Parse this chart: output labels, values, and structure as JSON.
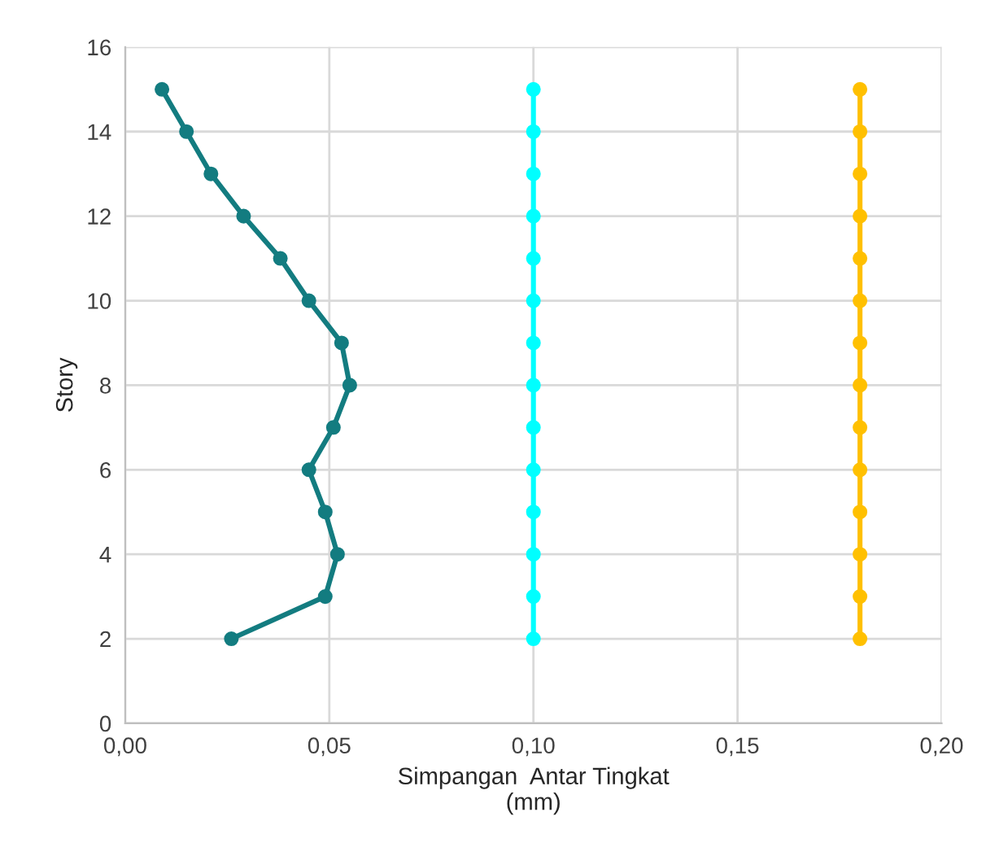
{
  "chart_data": {
    "type": "line",
    "xlabel": "Simpangan  Antar Tingkat\n(mm)",
    "ylabel": "Story",
    "series": [
      {
        "color": "#137c80",
        "x": [
          0.009,
          0.015,
          0.021,
          0.029,
          0.038,
          0.045,
          0.053,
          0.055,
          0.051,
          0.045,
          0.049,
          0.052,
          0.049,
          0.026
        ],
        "values": [
          15,
          14,
          13,
          12,
          11,
          10,
          9,
          8,
          7,
          6,
          5,
          4,
          3,
          2
        ]
      },
      {
        "color": "#00ffff",
        "x": [
          0.1,
          0.1,
          0.1,
          0.1,
          0.1,
          0.1,
          0.1,
          0.1,
          0.1,
          0.1,
          0.1,
          0.1,
          0.1,
          0.1
        ],
        "values": [
          15,
          14,
          13,
          12,
          11,
          10,
          9,
          8,
          7,
          6,
          5,
          4,
          3,
          2
        ]
      },
      {
        "color": "#ffc000",
        "x": [
          0.18,
          0.18,
          0.18,
          0.18,
          0.18,
          0.18,
          0.18,
          0.18,
          0.18,
          0.18,
          0.18,
          0.18,
          0.18,
          0.18
        ],
        "values": [
          15,
          14,
          13,
          12,
          11,
          10,
          9,
          8,
          7,
          6,
          5,
          4,
          3,
          2
        ]
      }
    ],
    "xlim": [
      0,
      0.2
    ],
    "xticks": [
      {
        "value": 0,
        "label": "0,00"
      },
      {
        "value": 0.05,
        "label": "0,05"
      },
      {
        "value": 0.1,
        "label": "0,10"
      },
      {
        "value": 0.15,
        "label": "0,15"
      },
      {
        "value": 0.2,
        "label": "0,20"
      }
    ],
    "ylim": [
      0,
      16
    ],
    "yticks": [
      0,
      2,
      4,
      6,
      8,
      10,
      12,
      14,
      16
    ],
    "grid": true,
    "marker": "circle",
    "line_style": "solid"
  }
}
